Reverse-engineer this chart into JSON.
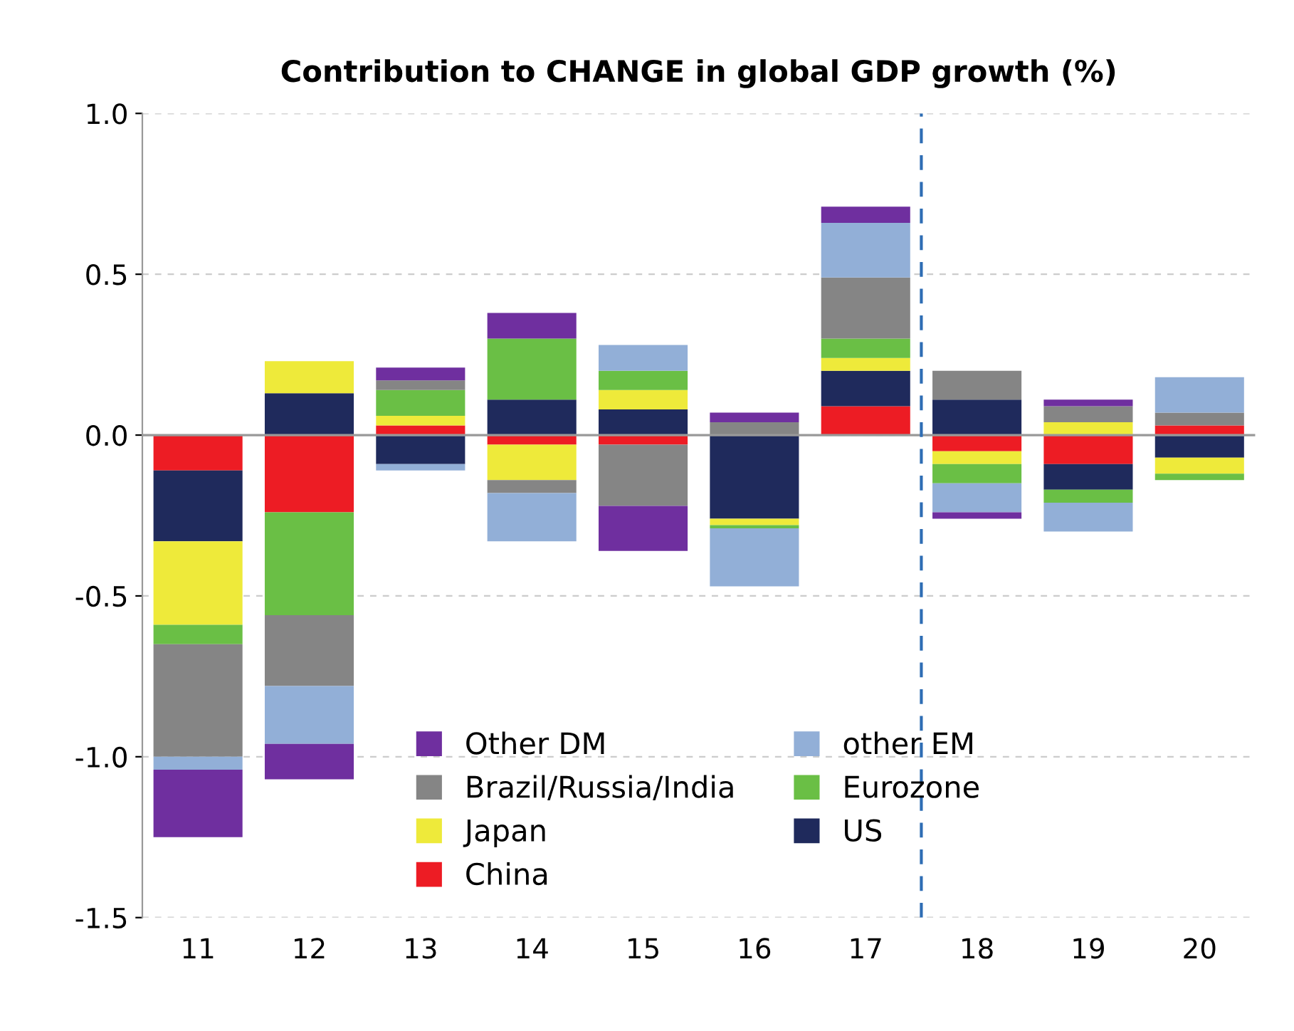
{
  "chart_data": {
    "type": "bar",
    "title": "Contribution to CHANGE in global GDP growth (%)",
    "x": [
      11,
      12,
      13,
      14,
      15,
      16,
      17,
      18,
      19,
      20
    ],
    "xlim": [
      10.5,
      20.5
    ],
    "xticks": [
      11,
      12,
      13,
      14,
      15,
      16,
      17,
      18,
      19,
      20
    ],
    "stacked": true,
    "series": [
      {
        "name": "China",
        "color": "#ed1c24",
        "values": [
          -0.11,
          -0.24,
          0.03,
          -0.03,
          -0.03,
          0,
          0.09,
          -0.05,
          -0.09,
          0.03
        ]
      },
      {
        "name": "US",
        "color": "#1f2a5c",
        "values": [
          -0.22,
          0.13,
          -0.09,
          0.11,
          0.08,
          -0.26,
          0.11,
          0.11,
          -0.08,
          -0.07
        ]
      },
      {
        "name": "Japan",
        "color": "#eeea3a",
        "values": [
          -0.26,
          0.1,
          0.03,
          -0.11,
          0.06,
          -0.02,
          0.04,
          -0.04,
          0.04,
          -0.05
        ]
      },
      {
        "name": "Eurozone",
        "color": "#6abf45",
        "values": [
          -0.06,
          -0.32,
          0.08,
          0.19,
          0.06,
          -0.01,
          0.06,
          -0.06,
          -0.04,
          -0.02
        ]
      },
      {
        "name": "Brazil/Russia/India",
        "color": "#858585",
        "values": [
          -0.35,
          -0.22,
          0.03,
          -0.04,
          -0.19,
          0.04,
          0.19,
          0.09,
          0.05,
          0.04
        ]
      },
      {
        "name": "other EM",
        "color": "#92afd7",
        "values": [
          -0.04,
          -0.18,
          -0.02,
          -0.15,
          0.08,
          -0.18,
          0.17,
          -0.09,
          -0.09,
          0.11
        ]
      },
      {
        "name": "Other DM",
        "color": "#6f2f9f",
        "values": [
          -0.21,
          -0.11,
          0.04,
          0.08,
          -0.14,
          0.03,
          0.05,
          -0.02,
          0.02,
          0
        ]
      }
    ],
    "ylim": [
      -1.5,
      1.0
    ],
    "yticks": [
      {
        "value": -1.5,
        "label": "-1.5"
      },
      {
        "value": -1.0,
        "label": "-1.0"
      },
      {
        "value": -0.5,
        "label": "-0.5"
      },
      {
        "value": 0.0,
        "label": "0.0"
      },
      {
        "value": 0.5,
        "label": "0.5"
      },
      {
        "value": 1.0,
        "label": "1.0"
      }
    ],
    "grid": "y",
    "legend": "bottom",
    "ref_lines": [
      {
        "axis": "x",
        "value": 17.5,
        "color": "#2e6db4",
        "line_style": "dashed"
      }
    ]
  }
}
